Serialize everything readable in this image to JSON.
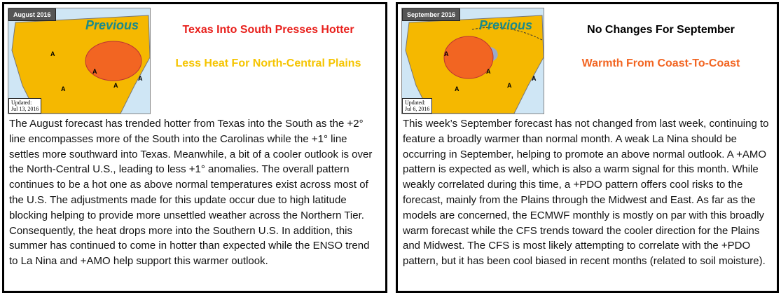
{
  "panels": [
    {
      "month": "August 2016",
      "badge": "Previous",
      "updated": "Updated:",
      "updated_date": "Jul 13, 2016",
      "headline": "Texas Into South Presses Hotter",
      "subheadline": "Less Heat For North-Central Plains",
      "map_labels": [
        "A",
        "A",
        "A",
        "A",
        "A"
      ],
      "body": "The August forecast has trended hotter from Texas into the South as the +2° line encompasses more of the South into the Carolinas while the +1° line settles more southward into Texas.  Meanwhile, a bit of a cooler outlook is over the North-Central U.S., leading to less +1° anomalies.  The overall pattern continues to be a hot one as above normal temperatures exist across most of the U.S.  The adjustments made for this update occur due to high latitude blocking helping to provide more unsettled weather across the Northern Tier.  Consequently, the heat drops more into the Southern U.S.  In addition, this summer has continued to come in hotter than expected while the ENSO trend to La Nina and +AMO help support this warmer outlook."
    },
    {
      "month": "September 2016",
      "badge": "Previous",
      "updated": "Updated:",
      "updated_date": "Jul 6, 2016",
      "headline": "No Changes For September",
      "subheadline": "Warmth From Coast-To-Coast",
      "map_labels": [
        "A",
        "A",
        "A",
        "A",
        "A"
      ],
      "body": "This week’s September forecast has not changed from last week, continuing to feature a broadly warmer than normal month.  A weak La Nina should be occurring in September, helping to promote an above normal outlook.  A +AMO pattern is expected as well, which is also a warm signal for this month.  While weakly correlated during this time, a +PDO pattern offers cool risks to the forecast, mainly from the Plains through the Midwest and East.   As far as the models are concerned, the ECMWF monthly is mostly on par with this broadly warm forecast while the CFS trends toward the cooler direction for the Plains and Midwest.  The CFS is most likely attempting to correlate with the +PDO pattern, but it has been cool biased in recent months (related to soil moisture)."
    }
  ]
}
